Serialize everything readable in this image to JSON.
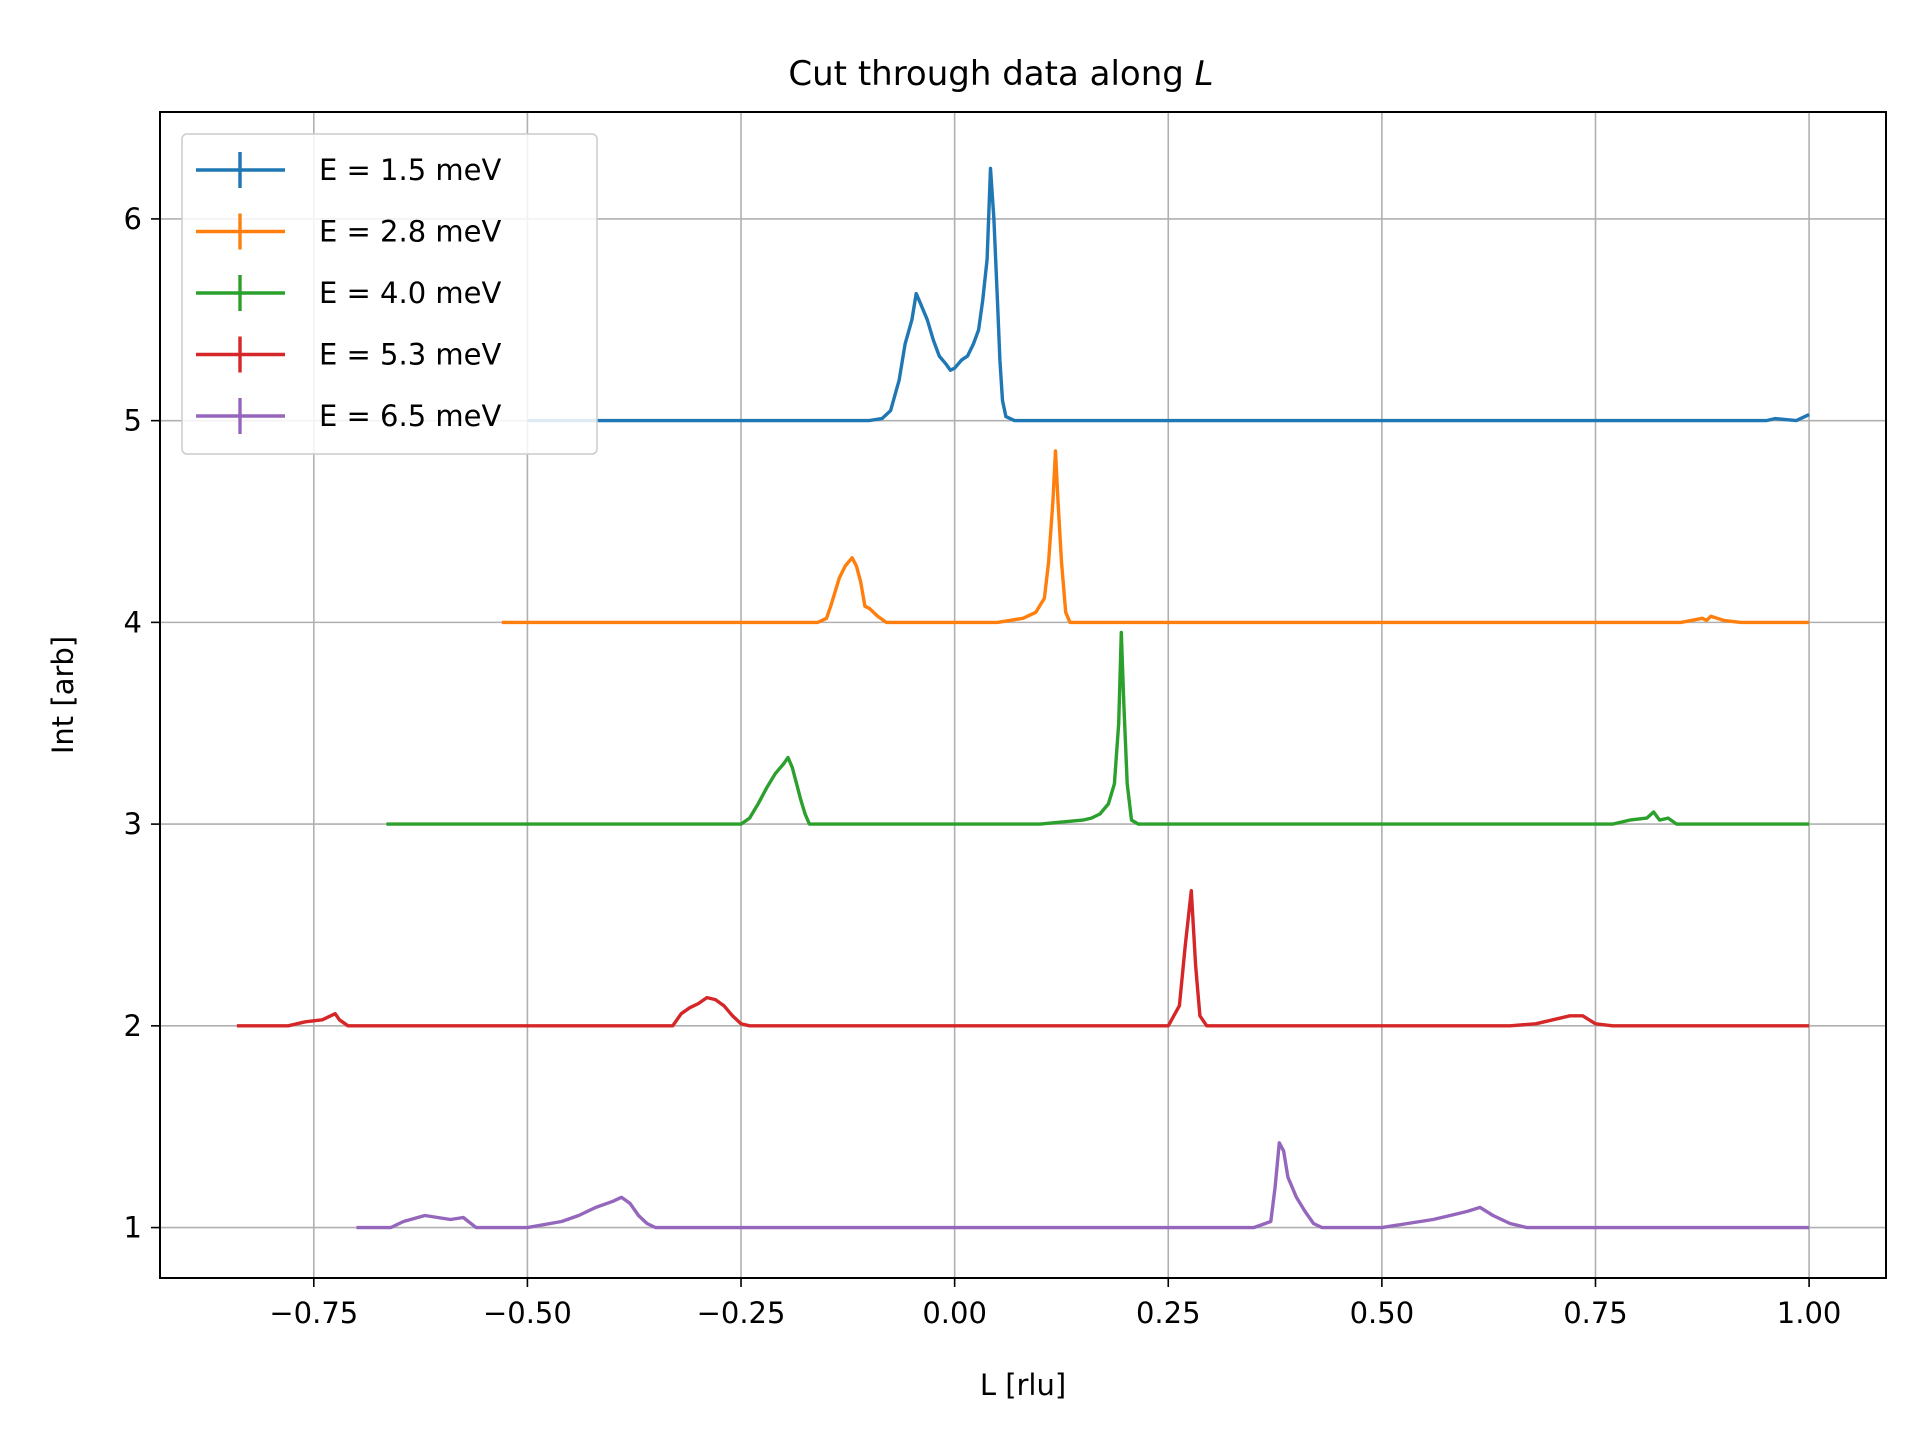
{
  "chart_data": {
    "type": "line",
    "title_prefix": "Cut through data along ",
    "title_var": "L",
    "xlabel": "L [rlu]",
    "ylabel": "Int [arb]",
    "xlim": [
      -0.93,
      1.09
    ],
    "ylim": [
      0.75,
      6.53
    ],
    "xticks": [
      -0.75,
      -0.5,
      -0.25,
      0.0,
      0.25,
      0.5,
      0.75,
      1.0
    ],
    "xtick_labels": [
      "−0.75",
      "−0.50",
      "−0.25",
      "0.00",
      "0.25",
      "0.50",
      "0.75",
      "1.00"
    ],
    "yticks": [
      1,
      2,
      3,
      4,
      5,
      6
    ],
    "ytick_labels": [
      "1",
      "2",
      "3",
      "4",
      "5",
      "6"
    ],
    "grid": true,
    "legend_position": "upper-left",
    "series": [
      {
        "name": "E = 1.5 meV",
        "color": "#1f77b4",
        "points": [
          [
            -0.5,
            5.0
          ],
          [
            -0.3,
            5.0
          ],
          [
            -0.1,
            5.0
          ],
          [
            -0.085,
            5.01
          ],
          [
            -0.075,
            5.05
          ],
          [
            -0.065,
            5.2
          ],
          [
            -0.058,
            5.38
          ],
          [
            -0.05,
            5.5
          ],
          [
            -0.045,
            5.63
          ],
          [
            -0.04,
            5.58
          ],
          [
            -0.032,
            5.5
          ],
          [
            -0.025,
            5.4
          ],
          [
            -0.018,
            5.32
          ],
          [
            -0.01,
            5.28
          ],
          [
            -0.005,
            5.25
          ],
          [
            0.0,
            5.26
          ],
          [
            0.008,
            5.3
          ],
          [
            0.015,
            5.32
          ],
          [
            0.022,
            5.38
          ],
          [
            0.028,
            5.45
          ],
          [
            0.033,
            5.6
          ],
          [
            0.038,
            5.8
          ],
          [
            0.042,
            6.25
          ],
          [
            0.046,
            6.0
          ],
          [
            0.05,
            5.6
          ],
          [
            0.053,
            5.3
          ],
          [
            0.056,
            5.1
          ],
          [
            0.06,
            5.02
          ],
          [
            0.07,
            5.0
          ],
          [
            0.5,
            5.0
          ],
          [
            0.9,
            5.0
          ],
          [
            0.95,
            5.0
          ],
          [
            0.96,
            5.01
          ],
          [
            0.985,
            5.0
          ],
          [
            1.0,
            5.03
          ]
        ]
      },
      {
        "name": "E = 2.8 meV",
        "color": "#ff7f0e",
        "points": [
          [
            -0.53,
            4.0
          ],
          [
            -0.3,
            4.0
          ],
          [
            -0.16,
            4.0
          ],
          [
            -0.15,
            4.02
          ],
          [
            -0.145,
            4.08
          ],
          [
            -0.14,
            4.15
          ],
          [
            -0.135,
            4.22
          ],
          [
            -0.128,
            4.28
          ],
          [
            -0.12,
            4.32
          ],
          [
            -0.115,
            4.28
          ],
          [
            -0.11,
            4.2
          ],
          [
            -0.105,
            4.08
          ],
          [
            -0.1,
            4.07
          ],
          [
            -0.09,
            4.03
          ],
          [
            -0.08,
            4.0
          ],
          [
            0.0,
            4.0
          ],
          [
            0.05,
            4.0
          ],
          [
            0.08,
            4.02
          ],
          [
            0.095,
            4.05
          ],
          [
            0.105,
            4.12
          ],
          [
            0.11,
            4.3
          ],
          [
            0.115,
            4.6
          ],
          [
            0.118,
            4.85
          ],
          [
            0.121,
            4.6
          ],
          [
            0.125,
            4.3
          ],
          [
            0.13,
            4.05
          ],
          [
            0.135,
            4.0
          ],
          [
            0.5,
            4.0
          ],
          [
            0.85,
            4.0
          ],
          [
            0.875,
            4.02
          ],
          [
            0.88,
            4.01
          ],
          [
            0.885,
            4.03
          ],
          [
            0.9,
            4.01
          ],
          [
            0.92,
            4.0
          ],
          [
            1.0,
            4.0
          ]
        ]
      },
      {
        "name": "E = 4.0 meV",
        "color": "#2ca02c",
        "points": [
          [
            -0.665,
            3.0
          ],
          [
            -0.4,
            3.0
          ],
          [
            -0.25,
            3.0
          ],
          [
            -0.24,
            3.03
          ],
          [
            -0.23,
            3.1
          ],
          [
            -0.22,
            3.18
          ],
          [
            -0.21,
            3.25
          ],
          [
            -0.2,
            3.3
          ],
          [
            -0.195,
            3.33
          ],
          [
            -0.19,
            3.28
          ],
          [
            -0.185,
            3.2
          ],
          [
            -0.18,
            3.12
          ],
          [
            -0.175,
            3.05
          ],
          [
            -0.17,
            3.0
          ],
          [
            0.1,
            3.0
          ],
          [
            0.15,
            3.02
          ],
          [
            0.16,
            3.03
          ],
          [
            0.17,
            3.05
          ],
          [
            0.18,
            3.1
          ],
          [
            0.187,
            3.2
          ],
          [
            0.192,
            3.5
          ],
          [
            0.195,
            3.95
          ],
          [
            0.198,
            3.6
          ],
          [
            0.202,
            3.2
          ],
          [
            0.207,
            3.02
          ],
          [
            0.215,
            3.0
          ],
          [
            0.5,
            3.0
          ],
          [
            0.77,
            3.0
          ],
          [
            0.79,
            3.02
          ],
          [
            0.81,
            3.03
          ],
          [
            0.818,
            3.06
          ],
          [
            0.825,
            3.02
          ],
          [
            0.835,
            3.03
          ],
          [
            0.845,
            3.0
          ],
          [
            1.0,
            3.0
          ]
        ]
      },
      {
        "name": "E = 5.3 meV",
        "color": "#d62728",
        "points": [
          [
            -0.84,
            2.0
          ],
          [
            -0.78,
            2.0
          ],
          [
            -0.76,
            2.02
          ],
          [
            -0.74,
            2.03
          ],
          [
            -0.725,
            2.06
          ],
          [
            -0.72,
            2.03
          ],
          [
            -0.71,
            2.0
          ],
          [
            -0.5,
            2.0
          ],
          [
            -0.33,
            2.0
          ],
          [
            -0.32,
            2.06
          ],
          [
            -0.31,
            2.09
          ],
          [
            -0.3,
            2.11
          ],
          [
            -0.29,
            2.14
          ],
          [
            -0.28,
            2.13
          ],
          [
            -0.27,
            2.1
          ],
          [
            -0.26,
            2.05
          ],
          [
            -0.25,
            2.01
          ],
          [
            -0.24,
            2.0
          ],
          [
            0.25,
            2.0
          ],
          [
            0.263,
            2.1
          ],
          [
            0.27,
            2.4
          ],
          [
            0.277,
            2.67
          ],
          [
            0.282,
            2.3
          ],
          [
            0.287,
            2.05
          ],
          [
            0.295,
            2.0
          ],
          [
            0.65,
            2.0
          ],
          [
            0.68,
            2.01
          ],
          [
            0.7,
            2.03
          ],
          [
            0.72,
            2.05
          ],
          [
            0.735,
            2.05
          ],
          [
            0.75,
            2.01
          ],
          [
            0.77,
            2.0
          ],
          [
            1.0,
            2.0
          ]
        ]
      },
      {
        "name": "E = 6.5 meV",
        "color": "#9467bd",
        "points": [
          [
            -0.7,
            1.0
          ],
          [
            -0.66,
            1.0
          ],
          [
            -0.645,
            1.03
          ],
          [
            -0.62,
            1.06
          ],
          [
            -0.59,
            1.04
          ],
          [
            -0.575,
            1.05
          ],
          [
            -0.56,
            1.0
          ],
          [
            -0.5,
            1.0
          ],
          [
            -0.46,
            1.03
          ],
          [
            -0.44,
            1.06
          ],
          [
            -0.42,
            1.1
          ],
          [
            -0.4,
            1.13
          ],
          [
            -0.39,
            1.15
          ],
          [
            -0.38,
            1.12
          ],
          [
            -0.37,
            1.06
          ],
          [
            -0.36,
            1.02
          ],
          [
            -0.35,
            1.0
          ],
          [
            0.35,
            1.0
          ],
          [
            0.37,
            1.03
          ],
          [
            0.375,
            1.2
          ],
          [
            0.38,
            1.42
          ],
          [
            0.385,
            1.38
          ],
          [
            0.39,
            1.25
          ],
          [
            0.4,
            1.15
          ],
          [
            0.41,
            1.08
          ],
          [
            0.42,
            1.02
          ],
          [
            0.43,
            1.0
          ],
          [
            0.5,
            1.0
          ],
          [
            0.53,
            1.02
          ],
          [
            0.56,
            1.04
          ],
          [
            0.58,
            1.06
          ],
          [
            0.6,
            1.08
          ],
          [
            0.615,
            1.1
          ],
          [
            0.63,
            1.06
          ],
          [
            0.65,
            1.02
          ],
          [
            0.67,
            1.0
          ],
          [
            1.0,
            1.0
          ]
        ]
      }
    ]
  }
}
